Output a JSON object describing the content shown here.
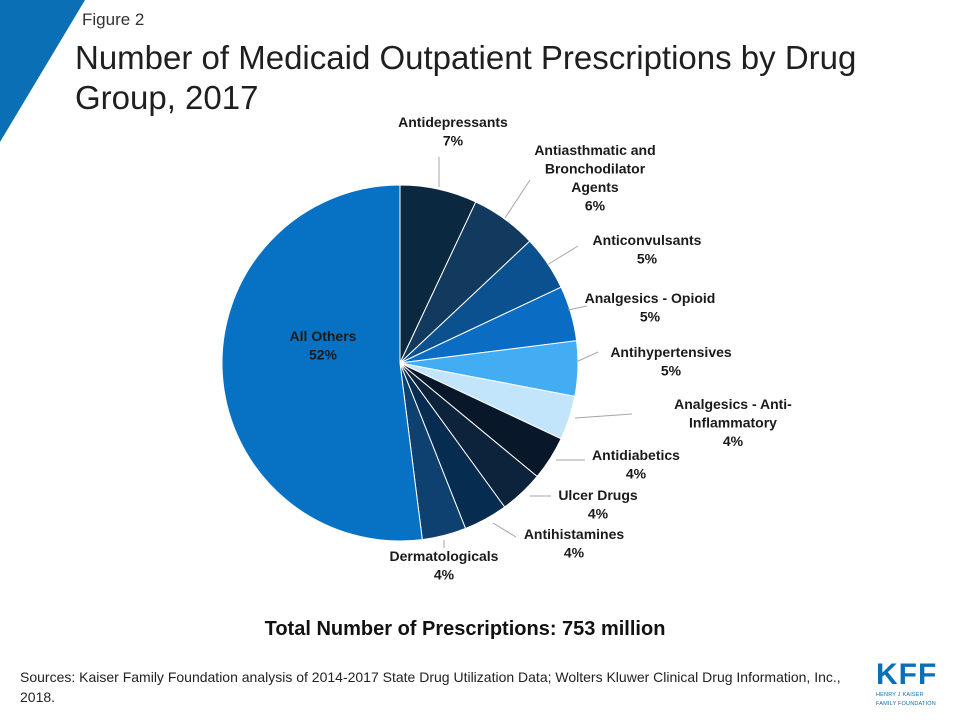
{
  "header": {
    "figure_label": "Figure 2",
    "title": "Number of Medicaid Outpatient Prescriptions by Drug Group, 2017"
  },
  "chart_data": {
    "type": "pie",
    "title": "Number of Medicaid Outpatient Prescriptions by Drug Group, 2017",
    "slices": [
      {
        "label": "Antidepressants",
        "value": 7,
        "display": "7%",
        "color": "#0a2840"
      },
      {
        "label": "Antiasthmatic and Bronchodilator Agents",
        "value": 6,
        "display": "6%",
        "color": "#123a5e"
      },
      {
        "label": "Anticonvulsants",
        "value": 5,
        "display": "5%",
        "color": "#0b5190"
      },
      {
        "label": "Analgesics - Opioid",
        "value": 5,
        "display": "5%",
        "color": "#0a6dc3"
      },
      {
        "label": "Antihypertensives",
        "value": 5,
        "display": "5%",
        "color": "#43adf4"
      },
      {
        "label": "Analgesics - Anti-Inflammatory",
        "value": 4,
        "display": "4%",
        "color": "#c3e5fb"
      },
      {
        "label": "Antidiabetics",
        "value": 4,
        "display": "4%",
        "color": "#08182a"
      },
      {
        "label": "Ulcer Drugs",
        "value": 4,
        "display": "4%",
        "color": "#0c233b"
      },
      {
        "label": "Antihistamines",
        "value": 4,
        "display": "4%",
        "color": "#062d50"
      },
      {
        "label": "Dermatologicals",
        "value": 4,
        "display": "4%",
        "color": "#0e416f"
      },
      {
        "label": "All Others",
        "value": 52,
        "display": "52%",
        "color": "#0771c4"
      }
    ],
    "labels": [
      {
        "lines": [
          "Antidepressants",
          "7%"
        ]
      },
      {
        "lines": [
          "Antiasthmatic and",
          "Bronchodilator",
          "Agents",
          "6%"
        ]
      },
      {
        "lines": [
          "Anticonvulsants",
          "5%"
        ]
      },
      {
        "lines": [
          "Analgesics - Opioid",
          "5%"
        ]
      },
      {
        "lines": [
          "Antihypertensives",
          "5%"
        ]
      },
      {
        "lines": [
          "Analgesics - Anti-",
          "Inflammatory",
          "4%"
        ]
      },
      {
        "lines": [
          "Antidiabetics",
          "4%"
        ]
      },
      {
        "lines": [
          "Ulcer Drugs",
          "4%"
        ]
      },
      {
        "lines": [
          "Antihistamines",
          "4%"
        ]
      },
      {
        "lines": [
          "Dermatologicals",
          "4%"
        ]
      },
      {
        "lines": [
          "All Others",
          "52%"
        ]
      }
    ]
  },
  "footer": {
    "total": "Total Number of Prescriptions: 753 million",
    "sources": "Sources: Kaiser Family Foundation analysis of 2014-2017 State Drug Utilization Data; Wolters Kluwer Clinical Drug Information, Inc., 2018."
  },
  "logo": {
    "letters": [
      "K",
      "F",
      "F"
    ],
    "sub_lines": [
      "HENRY J KAISER",
      "FAMILY FOUNDATION"
    ],
    "color": "#0b6fb6"
  },
  "accent_color": "#0b6fb6"
}
